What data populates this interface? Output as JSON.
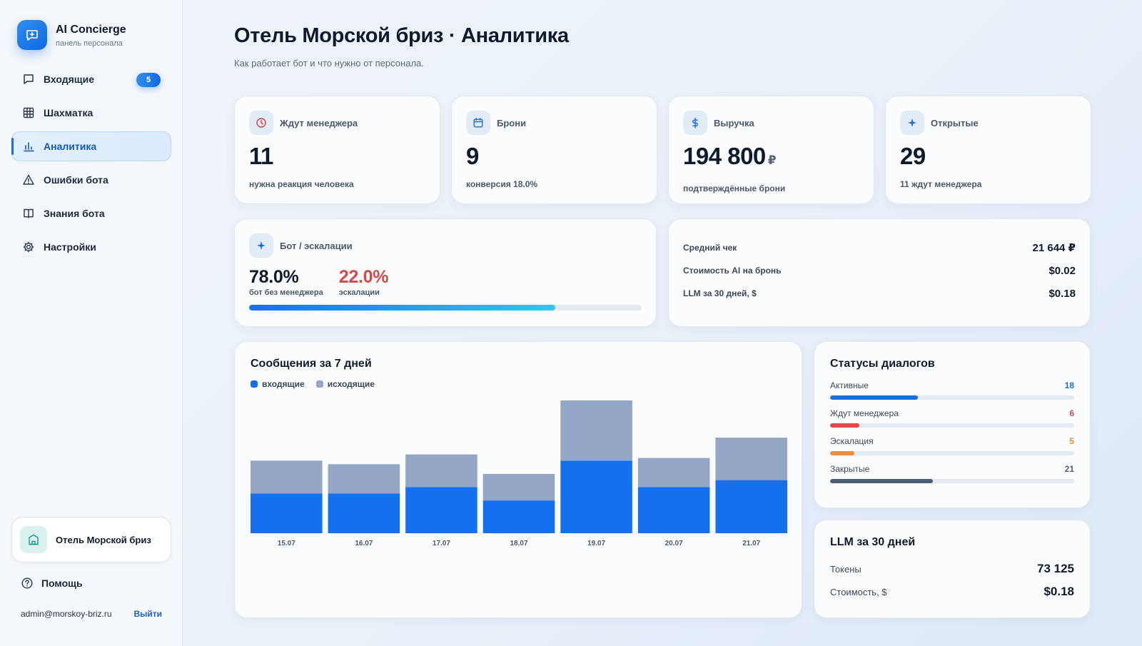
{
  "brand": {
    "title": "AI Concierge",
    "subtitle": "панель персонала"
  },
  "nav": [
    {
      "label": "Входящие",
      "icon": "message-icon",
      "badge": "5",
      "active": false
    },
    {
      "label": "Шахматка",
      "icon": "grid-icon",
      "active": false
    },
    {
      "label": "Аналитика",
      "icon": "bar-chart-icon",
      "active": true
    },
    {
      "label": "Ошибки бота",
      "icon": "warning-icon",
      "active": false
    },
    {
      "label": "Знания бота",
      "icon": "book-icon",
      "active": false
    },
    {
      "label": "Настройки",
      "icon": "gear-icon",
      "active": false
    }
  ],
  "hotel": {
    "name": "Отель Морской бриз"
  },
  "help_label": "Помощь",
  "user": {
    "email": "admin@morskoy-briz.ru",
    "logout": "Выйти"
  },
  "page": {
    "title": "Отель Морской бриз · Аналитика",
    "subtitle": "Как работает бот и что нужно от персонала."
  },
  "kpis": [
    {
      "label": "Ждут менеджера",
      "value": "11",
      "currency": "",
      "note": "нужна реакция человека",
      "icon": "clock-icon",
      "icon_color": "#d94848"
    },
    {
      "label": "Брони",
      "value": "9",
      "currency": "",
      "note": "конверсия 18.0%",
      "icon": "calendar-icon",
      "icon_color": "#1b6fe3"
    },
    {
      "label": "Выручка",
      "value": "194 800",
      "currency": "₽",
      "note": "подтверждённые брони",
      "icon": "dollar-icon",
      "icon_color": "#1b6fe3"
    },
    {
      "label": "Открытые",
      "value": "29",
      "currency": "",
      "note": "11 ждут менеджера",
      "icon": "sparkle-icon",
      "icon_color": "#1b6fe3"
    }
  ],
  "bot": {
    "title": "Бот / эскалации",
    "bot_pct": "78.0%",
    "bot_caption": "бот без менеджера",
    "esc_pct": "22.0%",
    "esc_caption": "эскалации",
    "bot_fraction": 0.78
  },
  "metrics": [
    {
      "label": "Средний чек",
      "value": "21 644 ₽"
    },
    {
      "label": "Стоимость AI на бронь",
      "value": "$0.02"
    },
    {
      "label": "LLM за 30 дней, $",
      "value": "$0.18"
    }
  ],
  "chart_data": {
    "type": "bar",
    "stacked": true,
    "title": "Сообщения за 7 дней",
    "categories": [
      "15.07",
      "16.07",
      "17.07",
      "18.07",
      "19.07",
      "20.07",
      "21.07"
    ],
    "series": [
      {
        "name": "входящие",
        "color": "#1570ef",
        "values": [
          45,
          45,
          52,
          37,
          82,
          52,
          60
        ]
      },
      {
        "name": "исходящие",
        "color": "#94a6c5",
        "values": [
          37,
          33,
          37,
          30,
          68,
          33,
          48
        ]
      }
    ],
    "ymax": 150,
    "grid": false,
    "legend": "top-left"
  },
  "statuses": {
    "title": "Статусы диалогов",
    "max": 50,
    "items": [
      {
        "label": "Активные",
        "count": 18,
        "count_text": "18",
        "color": "#1b6fe3"
      },
      {
        "label": "Ждут менеджера",
        "count": 6,
        "count_text": "6",
        "color": "#e04848"
      },
      {
        "label": "Эскалация",
        "count": 5,
        "count_text": "5",
        "color": "#ef8c3a"
      },
      {
        "label": "Закрытые",
        "count": 21,
        "count_text": "21",
        "color": "#4e5d73"
      }
    ]
  },
  "llm": {
    "title": "LLM за 30 дней",
    "rows": [
      {
        "label": "Токены",
        "value": "73 125"
      },
      {
        "label": "Стоимость, $",
        "value": "$0.18"
      }
    ]
  }
}
